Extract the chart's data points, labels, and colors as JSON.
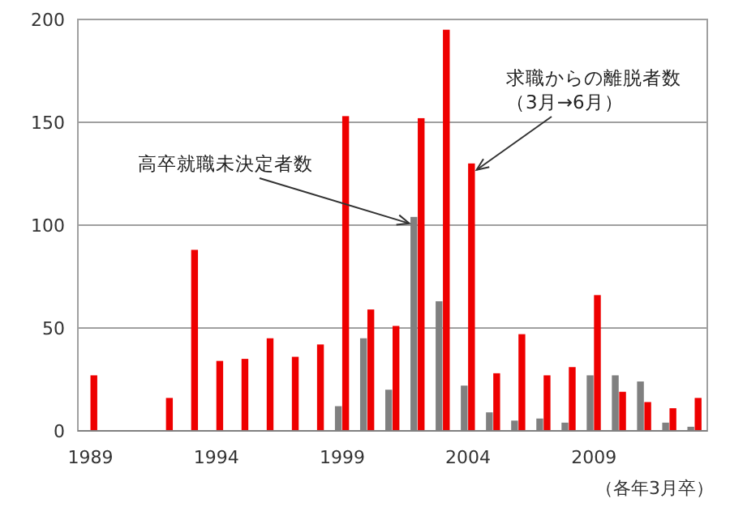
{
  "chart_data": {
    "type": "bar",
    "x": [
      1989,
      1990,
      1991,
      1992,
      1993,
      1994,
      1995,
      1996,
      1997,
      1998,
      1999,
      2000,
      2001,
      2002,
      2003,
      2004,
      2005,
      2006,
      2007,
      2008,
      2009,
      2010,
      2011,
      2012,
      2013
    ],
    "xlim": [
      1988.5,
      2013.5
    ],
    "xticks": [
      1989,
      1994,
      1999,
      2004,
      2009
    ],
    "series": [
      {
        "color": "#808080",
        "values": [
          null,
          null,
          null,
          null,
          null,
          null,
          null,
          null,
          null,
          null,
          12,
          45,
          20,
          104,
          63,
          22,
          9,
          5,
          6,
          4,
          27,
          27,
          24,
          4,
          2
        ]
      },
      {
        "color": "#ee0000",
        "values": [
          27,
          null,
          null,
          16,
          88,
          34,
          35,
          45,
          36,
          42,
          153,
          59,
          51,
          152,
          195,
          130,
          28,
          47,
          27,
          31,
          66,
          19,
          14,
          11,
          16
        ]
      }
    ],
    "ylim": [
      0,
      200
    ],
    "yticks": [
      0,
      50,
      100,
      150,
      200
    ],
    "grid": "y",
    "annotations": [
      {
        "text": "高卒就職未決定者数",
        "x": 2002,
        "y": 104
      },
      {
        "text": "求職からの離脱者数（3月→6月）",
        "x": 2004,
        "y": 130
      },
      "（各年3月卒）"
    ]
  }
}
